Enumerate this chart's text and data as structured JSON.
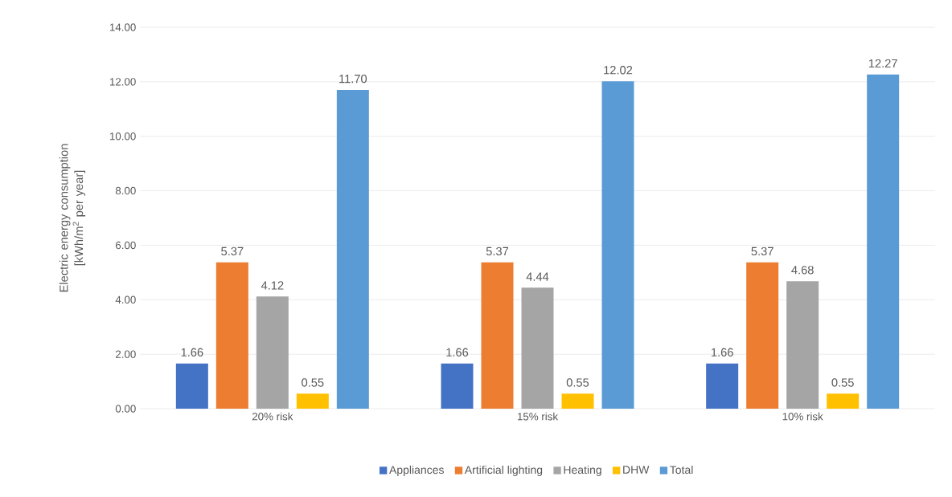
{
  "chart_data": {
    "type": "bar",
    "ylabel": "Electric energy consumption [kWh/m$^{2}$ per year]",
    "categories": [
      "20% risk",
      "15% risk",
      "10% risk"
    ],
    "series": [
      {
        "name": "Appliances",
        "color": "#4472c4",
        "values": [
          1.66,
          1.66,
          1.66
        ],
        "value_labels": [
          "1.66",
          "1.66",
          "1.66"
        ]
      },
      {
        "name": "Artificial lighting",
        "color": "#ed7d31",
        "values": [
          5.37,
          5.37,
          5.37
        ],
        "value_labels": [
          "5.37",
          "5.37",
          "5.37"
        ]
      },
      {
        "name": "Heating",
        "color": "#a5a5a5",
        "values": [
          4.12,
          4.44,
          4.68
        ],
        "value_labels": [
          "4.12",
          "4.44",
          "4.68"
        ]
      },
      {
        "name": "DHW",
        "color": "#ffc000",
        "values": [
          0.55,
          0.55,
          0.55
        ],
        "value_labels": [
          "0.55",
          "0.55",
          "0.55"
        ]
      },
      {
        "name": "Total",
        "color": "#5b9bd5",
        "values": [
          11.7,
          12.02,
          12.27
        ],
        "value_labels": [
          "11.70",
          "12.02",
          "12.27"
        ]
      }
    ],
    "ylim": [
      0,
      14
    ],
    "yticks": [
      {
        "value": 0,
        "label": "0.00"
      },
      {
        "value": 2,
        "label": "2.00"
      },
      {
        "value": 4,
        "label": "4.00"
      },
      {
        "value": 6,
        "label": "6.00"
      },
      {
        "value": 8,
        "label": "8.00"
      },
      {
        "value": 10,
        "label": "10.00"
      },
      {
        "value": 12,
        "label": "12.00"
      },
      {
        "value": 14,
        "label": "14.00"
      }
    ],
    "grid": "y",
    "legend": "bottom"
  }
}
